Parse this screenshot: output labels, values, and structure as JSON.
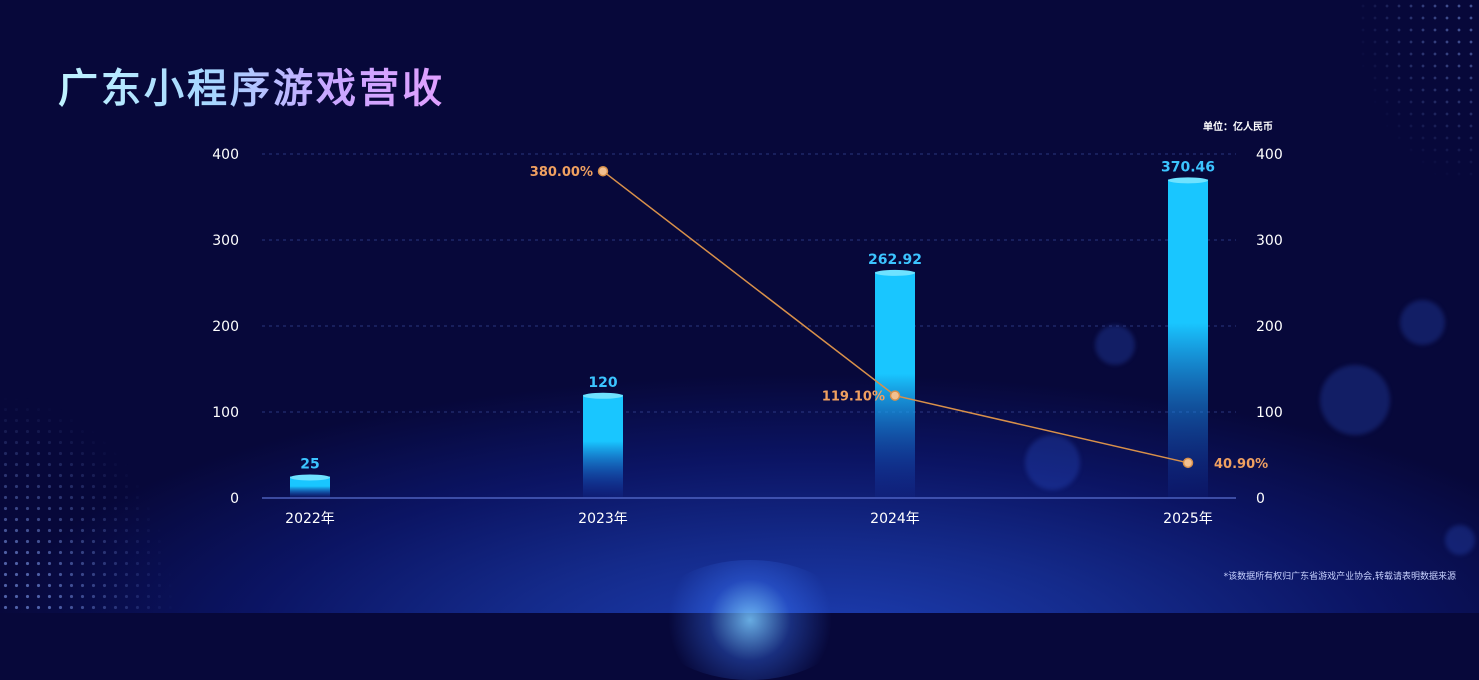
{
  "title": "广东小程序游戏营收",
  "unit": "单位：亿人民币",
  "footnote": "*该数据所有权归广东省游戏产业协会,转载请表明数据来源",
  "colors": {
    "bar": "#19c6ff",
    "bar_label": "#3cc4ff",
    "line": "#d8904a",
    "line_label": "#f0a060",
    "axis_text": "#ffffff",
    "grid": "#3a4a9a"
  },
  "chart_data": {
    "type": "bar",
    "categories": [
      "2022年",
      "2023年",
      "2024年",
      "2025年"
    ],
    "series": [
      {
        "type": "bar",
        "values": [
          25,
          120,
          262.92,
          370.46
        ],
        "labels": [
          "25",
          "120",
          "262.92",
          "370.46"
        ]
      },
      {
        "type": "line",
        "values": [
          null,
          380,
          119.1,
          40.9
        ],
        "labels": [
          "",
          "380.00%",
          "119.10%",
          "40.90%"
        ]
      }
    ],
    "y_left": {
      "ticks": [
        0,
        100,
        200,
        300,
        400
      ],
      "ylim": [
        0,
        400
      ]
    },
    "y_right": {
      "ticks": [
        0,
        100,
        200,
        300,
        400
      ],
      "ylim": [
        0,
        400
      ]
    },
    "grid": true
  }
}
